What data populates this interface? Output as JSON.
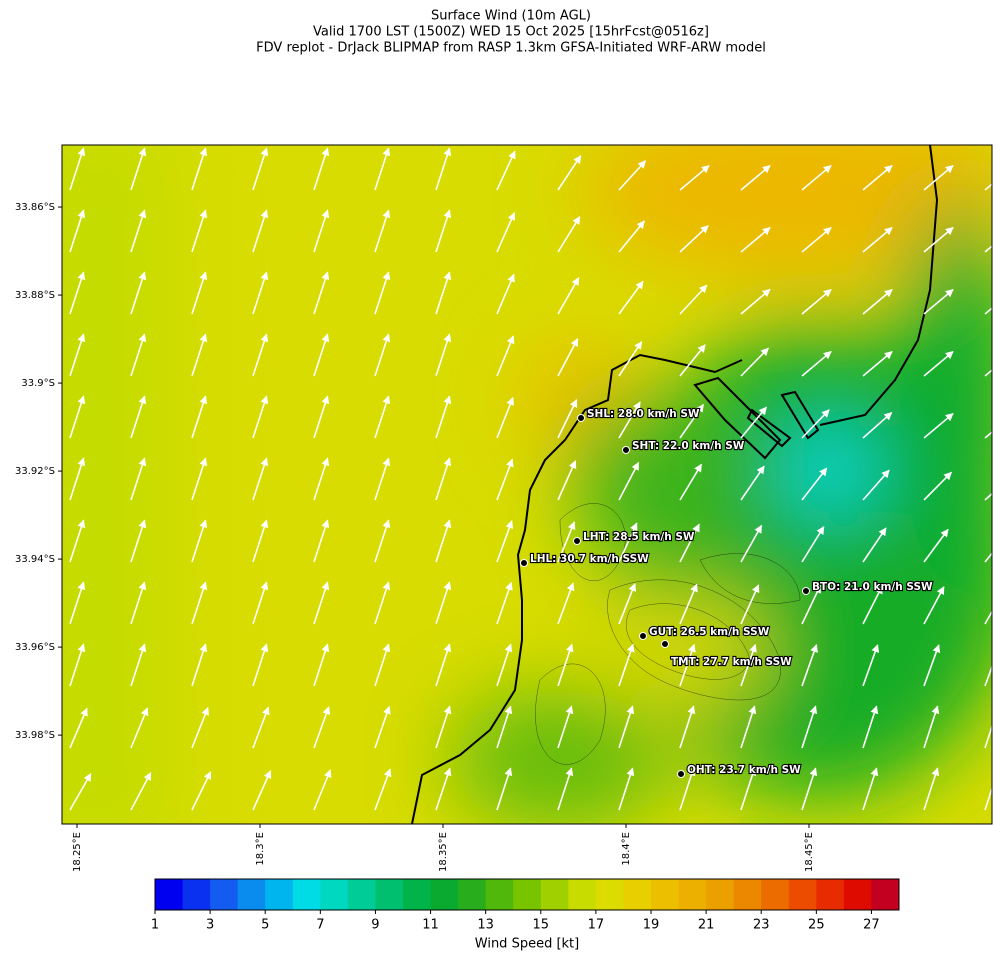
{
  "map": {
    "title": [
      "Surface Wind (10m AGL)",
      "Valid 1700 LST (1500Z) WED 15 Oct 2025 [15hrFcst@0516z]",
      "FDV replot - DrJack BLIPMAP from RASP 1.3km GFSA-Initiated WRF-ARW model"
    ],
    "xlim": [
      18.2459,
      18.5
    ],
    "ylim": [
      -34.0002,
      -33.8459
    ],
    "xticks": [
      {
        "value": 18.25,
        "label": "18.25°E"
      },
      {
        "value": 18.3,
        "label": "18.3°E"
      },
      {
        "value": 18.35,
        "label": "18.35°E"
      },
      {
        "value": 18.4,
        "label": "18.4°E"
      },
      {
        "value": 18.45,
        "label": "18.45°E"
      }
    ],
    "yticks": [
      {
        "value": -33.86,
        "label": "33.86°S"
      },
      {
        "value": -33.88,
        "label": "33.88°S"
      },
      {
        "value": -33.9,
        "label": "33.9°S"
      },
      {
        "value": -33.92,
        "label": "33.92°S"
      },
      {
        "value": -33.94,
        "label": "33.94°S"
      },
      {
        "value": -33.96,
        "label": "33.96°S"
      },
      {
        "value": -33.98,
        "label": "33.98°S"
      }
    ],
    "stations": [
      "SHL: 28.0 km/h SW",
      "SHT: 22.0 km/h SW",
      "LHT: 28.5 km/h SW",
      "LHL: 30.7 km/h SSW",
      "BTO: 21.0 km/h SSW",
      "GUT: 26.5 km/h SSW",
      "TMT: 27.7 km/h SSW",
      "OHT: 23.7 km/h SW"
    ],
    "colorbar": {
      "label": "Wind Speed [kt]",
      "lim": [
        1,
        28
      ],
      "ticks": [
        1,
        3,
        5,
        7,
        9,
        11,
        13,
        15,
        17,
        19,
        21,
        23,
        25,
        27
      ],
      "colors": [
        "#0000f0",
        "#0a30f0",
        "#145cf0",
        "#0a8cee",
        "#00b4ee",
        "#00dce6",
        "#00d8c0",
        "#00cc98",
        "#00c070",
        "#00b44a",
        "#0aaa30",
        "#28ae1c",
        "#50b80a",
        "#78c400",
        "#a0d000",
        "#c8dc00",
        "#dcdc00",
        "#e8d000",
        "#ecc000",
        "#ecb000",
        "#eca000",
        "#ec8800",
        "#ec6c00",
        "#ec4c00",
        "#e62c00",
        "#de0c00",
        "#c40020"
      ]
    }
  }
}
